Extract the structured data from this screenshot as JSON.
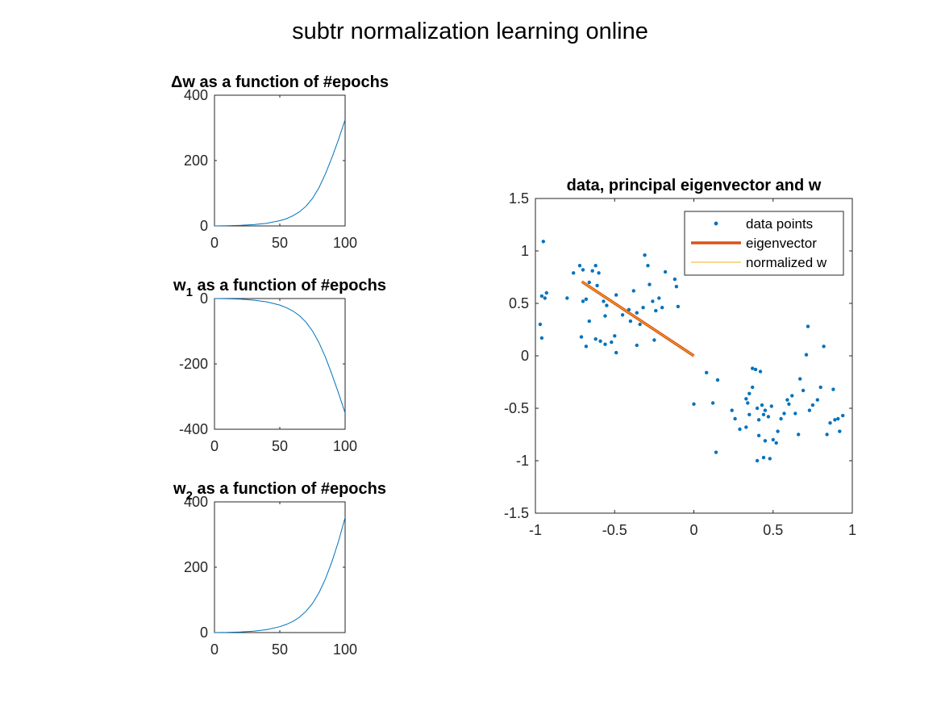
{
  "figure": {
    "title": "subtr normalization learning online"
  },
  "colors": {
    "series_blue": "#0072bd",
    "eigenvector": "#d95319",
    "normalized_w": "#edb120",
    "axis": "#262626"
  },
  "chart_data": [
    {
      "type": "line",
      "title": {
        "prefix": "Δw",
        "rest": " as a function of #epochs"
      },
      "xlabel": "",
      "ylabel": "",
      "xlim": [
        0,
        100
      ],
      "ylim": [
        0,
        400
      ],
      "xticks": [
        0,
        50,
        100
      ],
      "yticks": [
        0,
        200,
        400
      ],
      "grid": false,
      "series": [
        {
          "x": [
            0,
            10,
            20,
            30,
            40,
            50,
            55,
            60,
            65,
            70,
            75,
            80,
            85,
            90,
            95,
            100
          ],
          "y": [
            0,
            0.6,
            1.8,
            4,
            8,
            16,
            22,
            31,
            43,
            60,
            84,
            117,
            160,
            210,
            265,
            325
          ]
        }
      ]
    },
    {
      "type": "line",
      "title": {
        "prefix": "w",
        "sub": "1",
        "rest": " as a function of #epochs"
      },
      "xlabel": "",
      "ylabel": "",
      "xlim": [
        0,
        100
      ],
      "ylim": [
        -400,
        0
      ],
      "xticks": [
        0,
        50,
        100
      ],
      "yticks": [
        -400,
        -200,
        0
      ],
      "grid": false,
      "series": [
        {
          "x": [
            0,
            10,
            20,
            30,
            40,
            50,
            55,
            60,
            65,
            70,
            75,
            80,
            85,
            90,
            95,
            100
          ],
          "y": [
            0,
            -0.5,
            -2,
            -5,
            -10,
            -20,
            -28,
            -38,
            -52,
            -72,
            -99,
            -135,
            -180,
            -233,
            -290,
            -350
          ]
        }
      ]
    },
    {
      "type": "line",
      "title": {
        "prefix": "w",
        "sub": "2",
        "rest": " as a function of #epochs"
      },
      "xlabel": "",
      "ylabel": "",
      "xlim": [
        0,
        100
      ],
      "ylim": [
        0,
        400
      ],
      "xticks": [
        0,
        50,
        100
      ],
      "yticks": [
        0,
        200,
        400
      ],
      "grid": false,
      "series": [
        {
          "x": [
            0,
            10,
            20,
            30,
            40,
            50,
            55,
            60,
            65,
            70,
            75,
            80,
            85,
            90,
            95,
            100
          ],
          "y": [
            0,
            0.5,
            2,
            4.5,
            9,
            18,
            25,
            34,
            47,
            65,
            89,
            122,
            165,
            218,
            280,
            352
          ]
        }
      ]
    },
    {
      "type": "scatter",
      "title": {
        "text": "data, principal eigenvector and w"
      },
      "xlabel": "",
      "ylabel": "",
      "xlim": [
        -1,
        1
      ],
      "ylim": [
        -1.5,
        1.5
      ],
      "xticks": [
        -1,
        -0.5,
        0,
        0.5,
        1
      ],
      "yticks": [
        -1.5,
        -1,
        -0.5,
        0,
        0.5,
        1,
        1.5
      ],
      "xtick_labels": [
        "-1",
        "-0.5",
        "0",
        "0.5",
        "1"
      ],
      "ytick_labels": [
        "-1.5",
        "-1",
        "-0.5",
        "0",
        "0.5",
        "1",
        "1.5"
      ],
      "grid": false,
      "legend": {
        "placement": "top-right",
        "entries": [
          "data points",
          "eigenvector",
          "normalized w"
        ]
      },
      "series": [
        {
          "name": "data points",
          "type": "scatter",
          "points": [
            [
              -0.95,
              1.09
            ],
            [
              -0.96,
              0.57
            ],
            [
              -0.94,
              0.55
            ],
            [
              -0.93,
              0.6
            ],
            [
              -0.97,
              0.3
            ],
            [
              -0.96,
              0.17
            ],
            [
              -0.8,
              0.55
            ],
            [
              -0.76,
              0.79
            ],
            [
              -0.72,
              0.86
            ],
            [
              -0.7,
              0.82
            ],
            [
              -0.66,
              0.7
            ],
            [
              -0.64,
              0.81
            ],
            [
              -0.62,
              0.86
            ],
            [
              -0.6,
              0.79
            ],
            [
              -0.61,
              0.67
            ],
            [
              -0.57,
              0.52
            ],
            [
              -0.55,
              0.48
            ],
            [
              -0.7,
              0.52
            ],
            [
              -0.68,
              0.54
            ],
            [
              -0.66,
              0.33
            ],
            [
              -0.71,
              0.18
            ],
            [
              -0.68,
              0.09
            ],
            [
              -0.62,
              0.16
            ],
            [
              -0.59,
              0.14
            ],
            [
              -0.56,
              0.11
            ],
            [
              -0.52,
              0.13
            ],
            [
              -0.5,
              0.19
            ],
            [
              -0.49,
              0.03
            ],
            [
              -0.45,
              0.39
            ],
            [
              -0.41,
              0.44
            ],
            [
              -0.4,
              0.33
            ],
            [
              -0.38,
              0.62
            ],
            [
              -0.36,
              0.41
            ],
            [
              -0.34,
              0.3
            ],
            [
              -0.32,
              0.46
            ],
            [
              -0.31,
              0.96
            ],
            [
              -0.29,
              0.86
            ],
            [
              -0.28,
              0.68
            ],
            [
              -0.26,
              0.52
            ],
            [
              -0.24,
              0.43
            ],
            [
              -0.22,
              0.55
            ],
            [
              -0.2,
              0.46
            ],
            [
              -0.18,
              0.8
            ],
            [
              -0.12,
              0.73
            ],
            [
              -0.11,
              0.66
            ],
            [
              -0.1,
              0.47
            ],
            [
              -0.25,
              0.15
            ],
            [
              -0.36,
              0.1
            ],
            [
              -0.49,
              0.58
            ],
            [
              -0.56,
              0.38
            ],
            [
              0.0,
              -0.46
            ],
            [
              0.08,
              -0.16
            ],
            [
              0.12,
              -0.45
            ],
            [
              0.15,
              -0.23
            ],
            [
              0.14,
              -0.92
            ],
            [
              0.24,
              -0.52
            ],
            [
              0.26,
              -0.6
            ],
            [
              0.29,
              -0.7
            ],
            [
              0.33,
              -0.68
            ],
            [
              0.34,
              -0.45
            ],
            [
              0.35,
              -0.36
            ],
            [
              0.37,
              -0.12
            ],
            [
              0.39,
              -0.13
            ],
            [
              0.4,
              -0.5
            ],
            [
              0.41,
              -0.61
            ],
            [
              0.43,
              -0.47
            ],
            [
              0.44,
              -0.56
            ],
            [
              0.45,
              -0.52
            ],
            [
              0.47,
              -0.58
            ],
            [
              0.49,
              -0.48
            ],
            [
              0.5,
              -0.8
            ],
            [
              0.52,
              -0.83
            ],
            [
              0.53,
              -0.72
            ],
            [
              0.55,
              -0.6
            ],
            [
              0.57,
              -0.55
            ],
            [
              0.59,
              -0.42
            ],
            [
              0.6,
              -0.46
            ],
            [
              0.62,
              -0.38
            ],
            [
              0.64,
              -0.55
            ],
            [
              0.66,
              -0.75
            ],
            [
              0.67,
              -0.22
            ],
            [
              0.69,
              -0.33
            ],
            [
              0.71,
              0.01
            ],
            [
              0.72,
              0.28
            ],
            [
              0.73,
              -0.52
            ],
            [
              0.75,
              -0.47
            ],
            [
              0.78,
              -0.42
            ],
            [
              0.8,
              -0.3
            ],
            [
              0.82,
              0.09
            ],
            [
              0.84,
              -0.75
            ],
            [
              0.86,
              -0.64
            ],
            [
              0.88,
              -0.32
            ],
            [
              0.89,
              -0.61
            ],
            [
              0.91,
              -0.6
            ],
            [
              0.92,
              -0.72
            ],
            [
              0.94,
              -0.57
            ],
            [
              0.4,
              -1.0
            ],
            [
              0.44,
              -0.97
            ],
            [
              0.48,
              -0.98
            ],
            [
              0.41,
              -0.76
            ],
            [
              0.45,
              -0.81
            ],
            [
              0.33,
              -0.41
            ],
            [
              0.37,
              -0.3
            ],
            [
              0.42,
              -0.15
            ],
            [
              0.35,
              -0.56
            ]
          ]
        },
        {
          "name": "eigenvector",
          "type": "line",
          "x": [
            0,
            -0.707
          ],
          "y": [
            0,
            0.707
          ]
        },
        {
          "name": "normalized w",
          "type": "line",
          "x": [
            0,
            -0.707
          ],
          "y": [
            0,
            0.707
          ]
        }
      ]
    }
  ]
}
